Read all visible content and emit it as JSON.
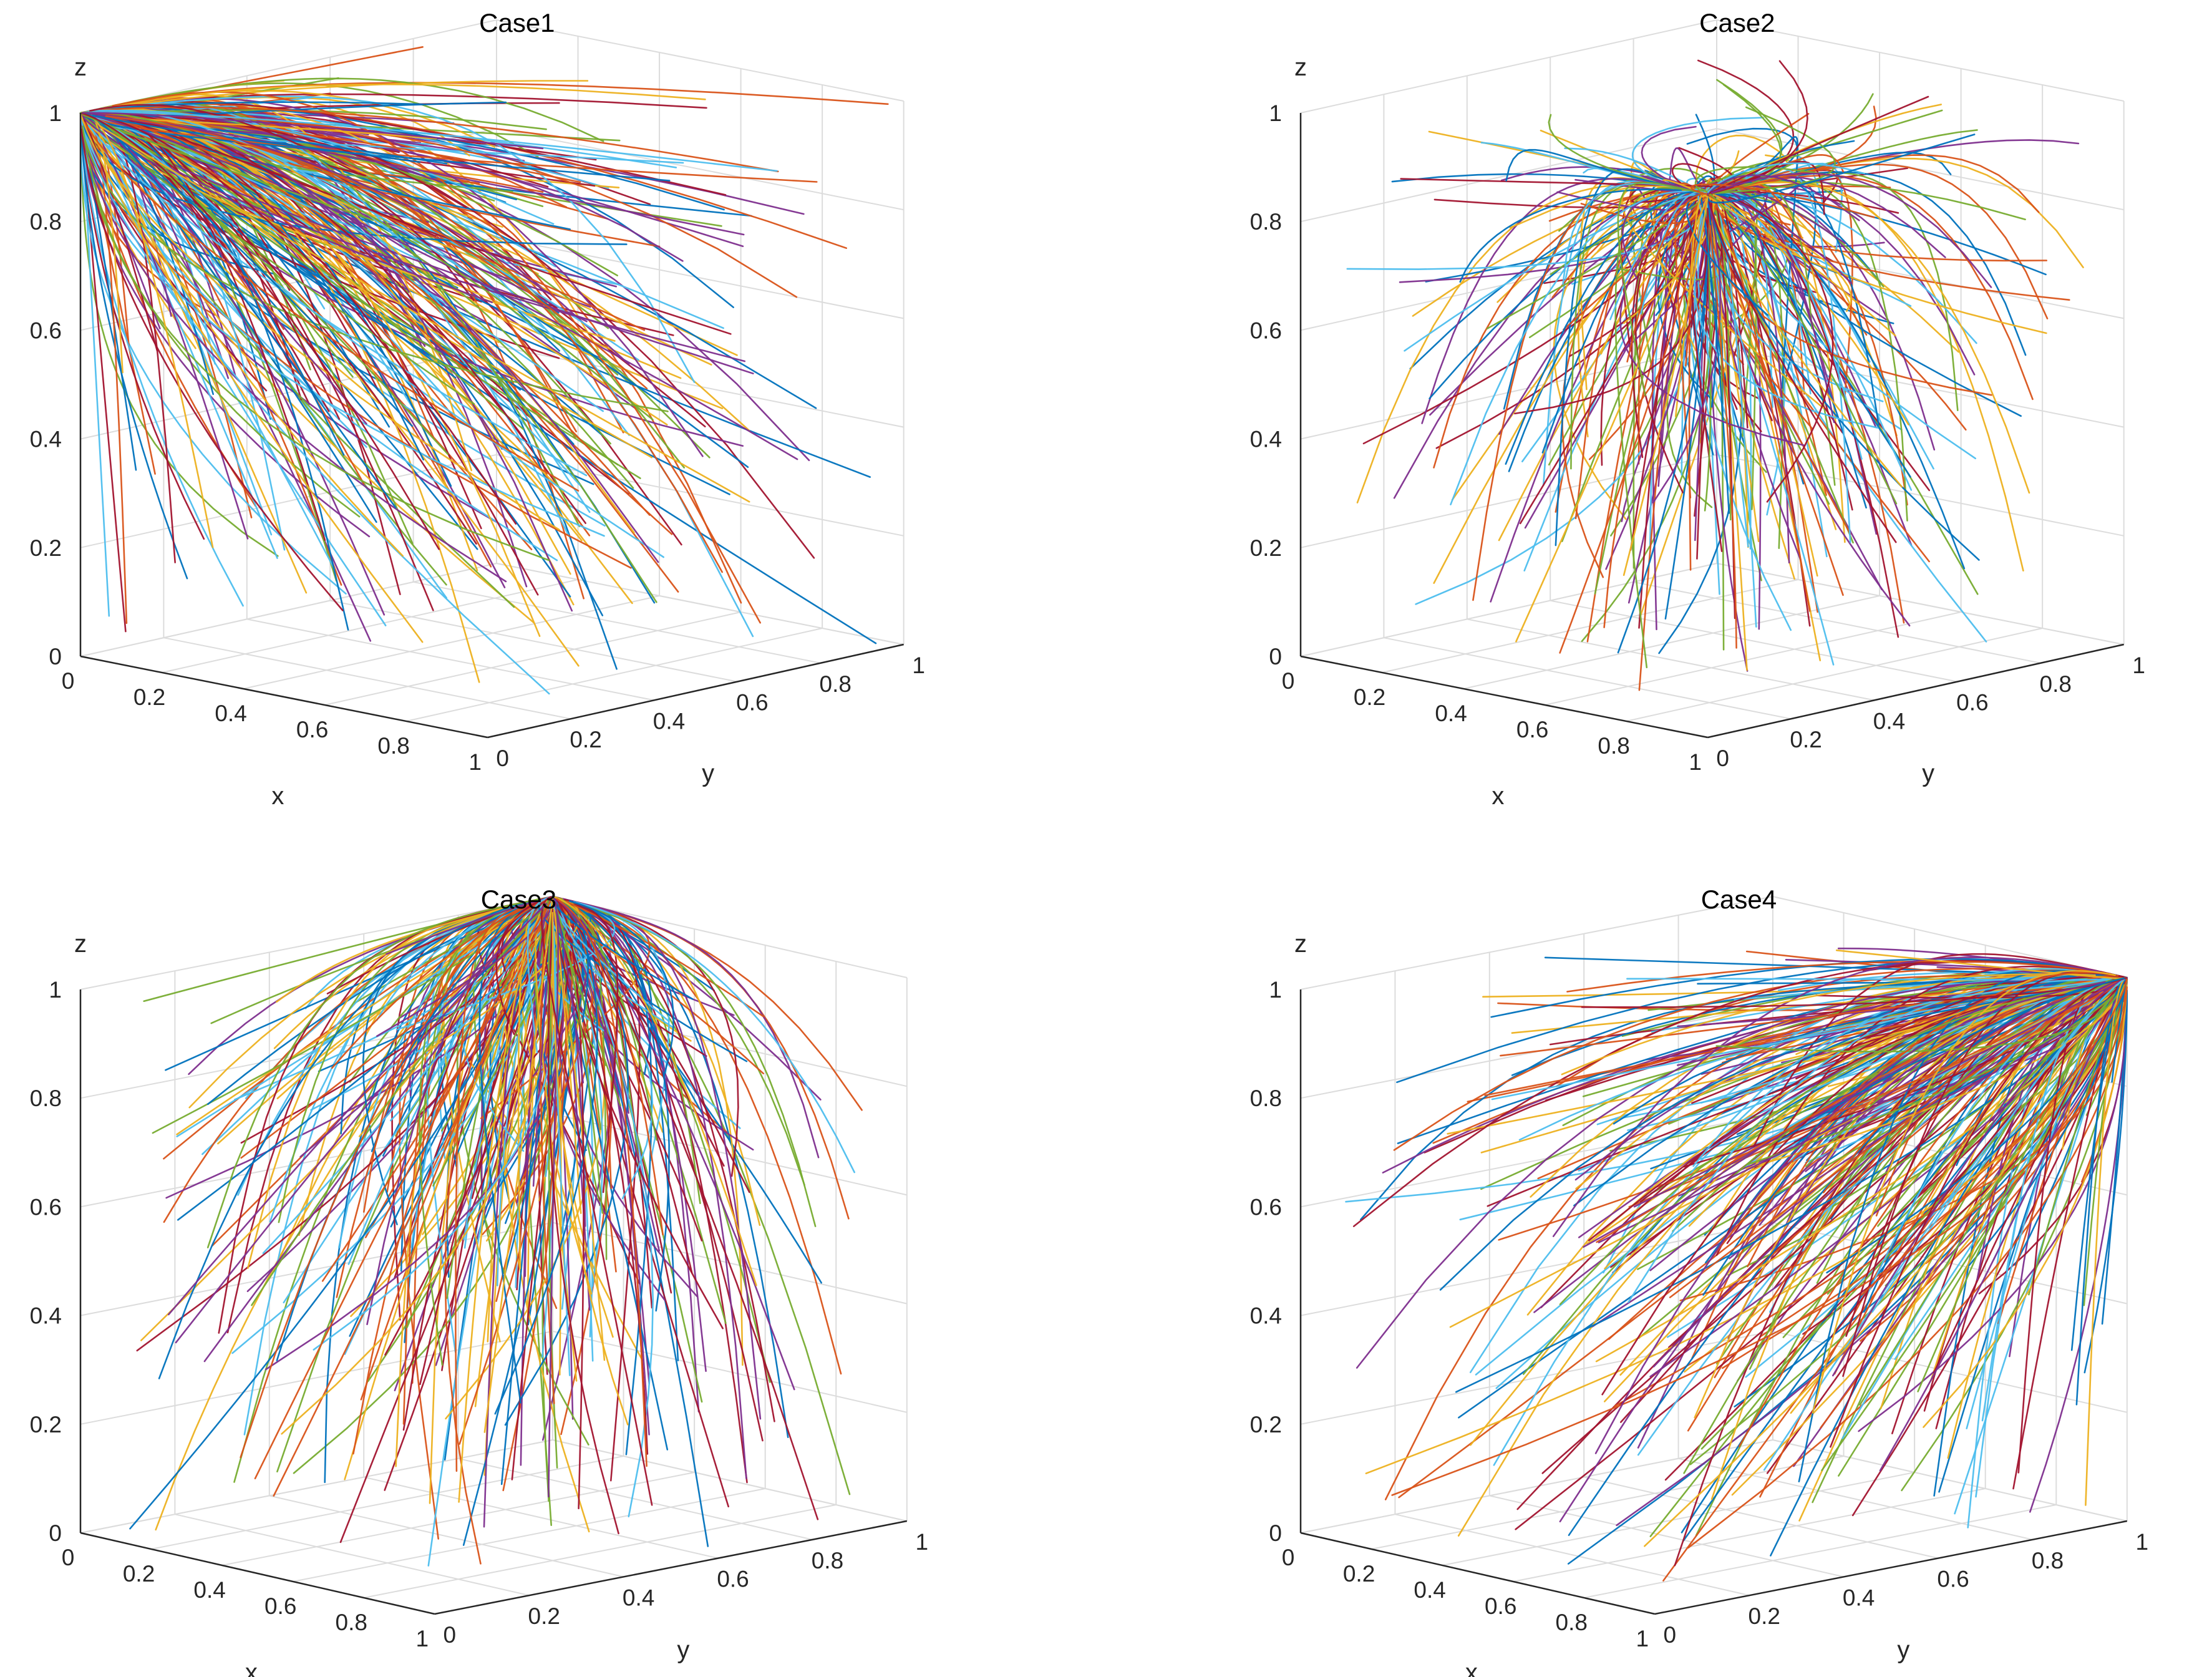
{
  "chart_data": [
    {
      "type": "line",
      "subtype": "3d-trajectory",
      "title": "Case1",
      "xlabel": "x",
      "ylabel": "y",
      "zlabel": "z",
      "xlim": [
        0,
        1
      ],
      "ylim": [
        0,
        1
      ],
      "zlim": [
        0,
        1
      ],
      "xticks": [
        "0",
        "0.2",
        "0.4",
        "0.6",
        "0.8",
        "1"
      ],
      "yticks": [
        "0",
        "0.2",
        "0.4",
        "0.6",
        "0.8",
        "1"
      ],
      "zticks": [
        "0",
        "0.2",
        "0.4",
        "0.6",
        "0.8",
        "1"
      ],
      "grid": true,
      "equilibrium": {
        "x": 0,
        "y": 0,
        "z": 1
      },
      "pattern": "all trajectories converge to (x, y, z) = (0, 0, 1)"
    },
    {
      "type": "line",
      "subtype": "3d-trajectory",
      "title": "Case2",
      "xlabel": "x",
      "ylabel": "y",
      "zlabel": "z",
      "xlim": [
        0,
        1
      ],
      "ylim": [
        0,
        1
      ],
      "zlim": [
        0,
        1
      ],
      "xticks": [
        "0",
        "0.2",
        "0.4",
        "0.6",
        "0.8",
        "1"
      ],
      "yticks": [
        "0",
        "0.2",
        "0.4",
        "0.6",
        "0.8",
        "1"
      ],
      "zticks": [
        "0",
        "0.2",
        "0.4",
        "0.6",
        "0.8",
        "1"
      ],
      "grid": true,
      "equilibrium": {
        "x": 1,
        "y": 0,
        "z": 1
      },
      "pattern": "all trajectories converge to (x, y, z) = (1, 0, 1)"
    },
    {
      "type": "line",
      "subtype": "3d-trajectory",
      "title": "Case3",
      "xlabel": "x",
      "ylabel": "y",
      "zlabel": "z",
      "xlim": [
        0,
        1
      ],
      "ylim": [
        0,
        1
      ],
      "zlim": [
        0,
        1
      ],
      "xticks": [
        "0",
        "0.2",
        "0.4",
        "0.6",
        "0.8",
        "1"
      ],
      "yticks": [
        "0",
        "0.2",
        "0.4",
        "0.6",
        "0.8",
        "1"
      ],
      "zticks": [
        "0",
        "0.2",
        "0.4",
        "0.6",
        "0.8",
        "1"
      ],
      "grid": true,
      "equilibrium": {
        "x": 0,
        "y": 1,
        "z": 1
      },
      "pattern": "all trajectories converge to (x, y, z) = (0, 1, 1)"
    },
    {
      "type": "line",
      "subtype": "3d-trajectory",
      "title": "Case4",
      "xlabel": "x",
      "ylabel": "y",
      "zlabel": "z",
      "xlim": [
        0,
        1
      ],
      "ylim": [
        0,
        1
      ],
      "zlim": [
        0,
        1
      ],
      "xticks": [
        "0",
        "0.2",
        "0.4",
        "0.6",
        "0.8",
        "1"
      ],
      "yticks": [
        "0",
        "0.2",
        "0.4",
        "0.6",
        "0.8",
        "1"
      ],
      "zticks": [
        "0",
        "0.2",
        "0.4",
        "0.6",
        "0.8",
        "1"
      ],
      "grid": true,
      "equilibrium": {
        "x": 1,
        "y": 1,
        "z": 1
      },
      "pattern": "all trajectories converge to (x, y, z) = (1, 1, 1)"
    }
  ],
  "colors": [
    "#0072BD",
    "#D95319",
    "#EDB120",
    "#7E2F8E",
    "#77AC30",
    "#4DBEEE",
    "#A2142F"
  ]
}
